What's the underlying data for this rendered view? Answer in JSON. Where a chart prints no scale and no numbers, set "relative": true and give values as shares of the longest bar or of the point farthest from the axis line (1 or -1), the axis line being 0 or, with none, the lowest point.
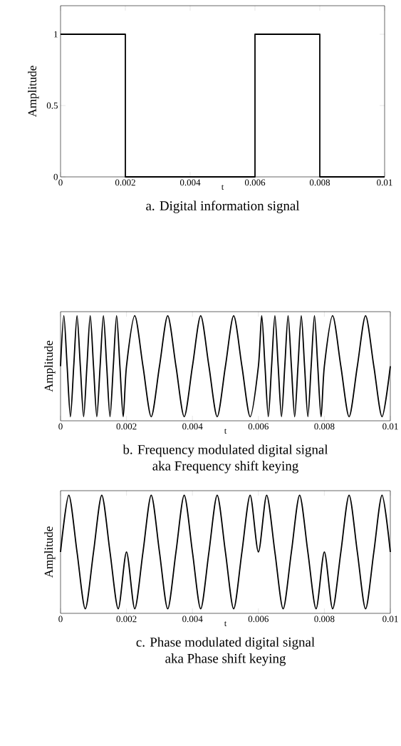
{
  "chart_data": [
    {
      "type": "step",
      "title": "a. Digital information signal",
      "xlabel": "t",
      "ylabel": "Amplitude",
      "x": [
        0,
        0.002,
        0.006,
        0.008,
        0.01
      ],
      "values": [
        1,
        0,
        1,
        0,
        0
      ],
      "color": "#000000",
      "xlim": [
        0,
        0.01
      ],
      "ylim": [
        0,
        1.2
      ],
      "xticks": [
        0,
        0.002,
        0.004,
        0.006,
        0.008,
        0.01
      ],
      "yticks": [
        0,
        0.5,
        1
      ],
      "grid": false
    },
    {
      "type": "line",
      "title": "b. Frequency modulated digital signal",
      "subtitle": "aka Frequency shift keying",
      "xlabel": "t",
      "ylabel": "Amplitude",
      "relative": true,
      "tick_labels": "x",
      "x": [
        0,
        0.0001,
        0.0002,
        0.0003,
        0.0004,
        0.0005,
        0.0006,
        0.0007,
        0.0008,
        0.0009,
        0.001,
        0.0011,
        0.0012,
        0.0013,
        0.0014,
        0.0015,
        0.0016,
        0.0017,
        0.0018,
        0.0019,
        0.002,
        0.00225,
        0.0025,
        0.00275,
        0.003,
        0.00325,
        0.0035,
        0.00375,
        0.004,
        0.00425,
        0.0045,
        0.00475,
        0.005,
        0.00525,
        0.0055,
        0.00575,
        0.006,
        0.0061,
        0.0062,
        0.0063,
        0.0064,
        0.0065,
        0.0066,
        0.0067,
        0.0068,
        0.0069,
        0.007,
        0.0071,
        0.0072,
        0.0073,
        0.0074,
        0.0075,
        0.0076,
        0.0077,
        0.0078,
        0.0079,
        0.008,
        0.00825,
        0.0085,
        0.00875,
        0.009,
        0.00925,
        0.0095,
        0.00975,
        0.01
      ],
      "values": [
        0.5,
        1,
        0.5,
        0,
        0.5,
        1,
        0.5,
        0,
        0.5,
        1,
        0.5,
        0,
        0.5,
        1,
        0.5,
        0,
        0.5,
        1,
        0.5,
        0,
        0.5,
        1,
        0.5,
        0,
        0.5,
        1,
        0.5,
        0,
        0.5,
        1,
        0.5,
        0,
        0.5,
        1,
        0.5,
        0,
        0.5,
        1,
        0.5,
        0,
        0.5,
        1,
        0.5,
        0,
        0.5,
        1,
        0.5,
        0,
        0.5,
        1,
        0.5,
        0,
        0.5,
        1,
        0.5,
        0,
        0.5,
        1,
        0.5,
        0,
        0.5,
        1,
        0.5,
        0,
        0.5
      ],
      "color": "#000000",
      "xlim": [
        0,
        0.01
      ],
      "xticks": [
        0,
        0.002,
        0.004,
        0.006,
        0.008,
        0.01
      ],
      "grid": false
    },
    {
      "type": "line",
      "title": "c. Phase modulated digital signal",
      "subtitle": "aka Phase shift keying",
      "xlabel": "t",
      "ylabel": "Amplitude",
      "relative": true,
      "tick_labels": "x",
      "x": [
        0,
        0.00025,
        0.0005,
        0.00075,
        0.001,
        0.00125,
        0.0015,
        0.00175,
        0.002,
        0.00225,
        0.0025,
        0.00275,
        0.003,
        0.00325,
        0.0035,
        0.00375,
        0.004,
        0.00425,
        0.0045,
        0.00475,
        0.005,
        0.00525,
        0.0055,
        0.00575,
        0.006,
        0.00625,
        0.0065,
        0.00675,
        0.007,
        0.00725,
        0.0075,
        0.00775,
        0.008,
        0.00825,
        0.0085,
        0.00875,
        0.009,
        0.00925,
        0.0095,
        0.00975,
        0.01
      ],
      "values": [
        0.5,
        1,
        0.5,
        0,
        0.5,
        1,
        0.5,
        0,
        0.5,
        0,
        0.5,
        1,
        0.5,
        0,
        0.5,
        1,
        0.5,
        0,
        0.5,
        1,
        0.5,
        0,
        0.5,
        1,
        0.5,
        1,
        0.5,
        0,
        0.5,
        1,
        0.5,
        0,
        0.5,
        0,
        0.5,
        1,
        0.5,
        0,
        0.5,
        1,
        0.5
      ],
      "color": "#000000",
      "xlim": [
        0,
        0.01
      ],
      "xticks": [
        0,
        0.002,
        0.004,
        0.006,
        0.008,
        0.01
      ],
      "grid": false
    }
  ]
}
